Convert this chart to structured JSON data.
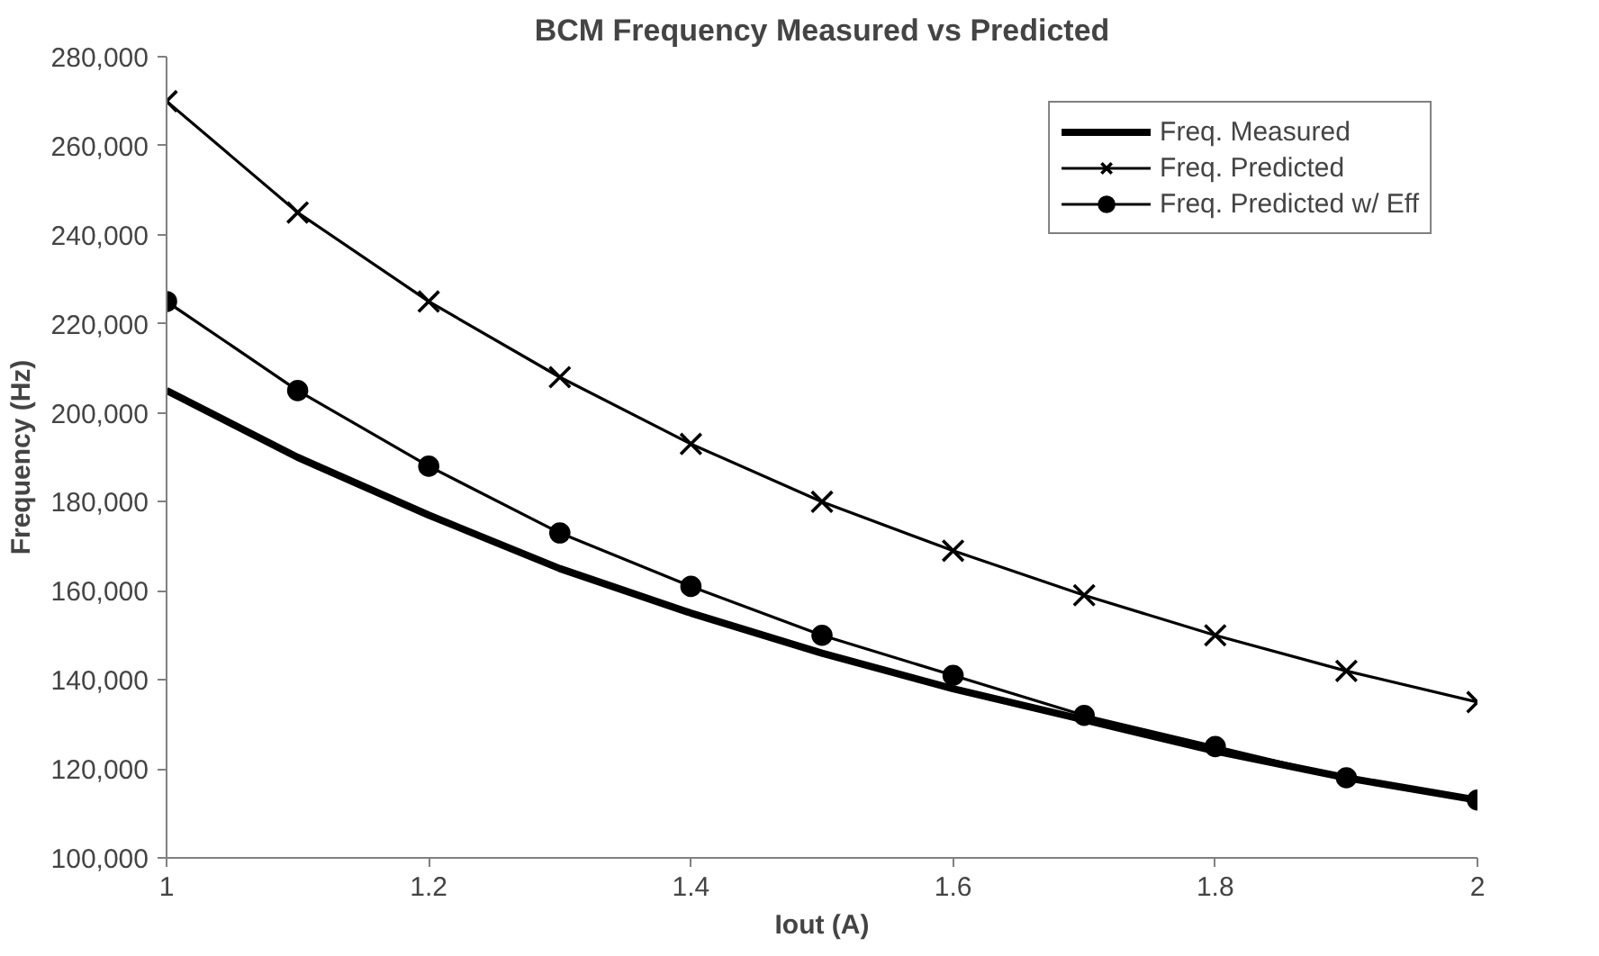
{
  "chart_data": {
    "type": "line",
    "title": "BCM Frequency Measured vs Predicted",
    "xlabel": "Iout (A)",
    "ylabel": "Frequency (Hz)",
    "x": [
      1,
      1.1,
      1.2,
      1.3,
      1.4,
      1.5,
      1.6,
      1.7,
      1.8,
      1.9,
      2
    ],
    "series": [
      {
        "name": "Freq. Measured",
        "color": "#000000",
        "marker": "none",
        "values": [
          205000,
          190000,
          177000,
          165000,
          155000,
          146000,
          138000,
          131000,
          124000,
          118000,
          113000
        ]
      },
      {
        "name": "Freq. Predicted",
        "color": "#000000",
        "marker": "cross",
        "values": [
          270000,
          245000,
          225000,
          208000,
          193000,
          180000,
          169000,
          159000,
          150000,
          142000,
          135000
        ]
      },
      {
        "name": "Freq. Predicted w/ Eff",
        "color": "#000000",
        "marker": "circle",
        "values": [
          225000,
          205000,
          188000,
          173000,
          161000,
          150000,
          141000,
          132000,
          125000,
          118000,
          113000
        ]
      }
    ],
    "xlim": [
      1,
      2
    ],
    "xticks": [
      1,
      1.2,
      1.4,
      1.6,
      1.8,
      2
    ],
    "ylim": [
      100000,
      280000
    ],
    "yticks": [
      {
        "value": 100000,
        "label": "100,000"
      },
      {
        "value": 120000,
        "label": "120,000"
      },
      {
        "value": 140000,
        "label": "140,000"
      },
      {
        "value": 160000,
        "label": "160,000"
      },
      {
        "value": 180000,
        "label": "180,000"
      },
      {
        "value": 200000,
        "label": "200,000"
      },
      {
        "value": 220000,
        "label": "220,000"
      },
      {
        "value": 240000,
        "label": "240,000"
      },
      {
        "value": 260000,
        "label": "260,000"
      },
      {
        "value": 280000,
        "label": "280,000"
      }
    ],
    "grid": false,
    "legend": "top right",
    "line_style": "solid"
  }
}
